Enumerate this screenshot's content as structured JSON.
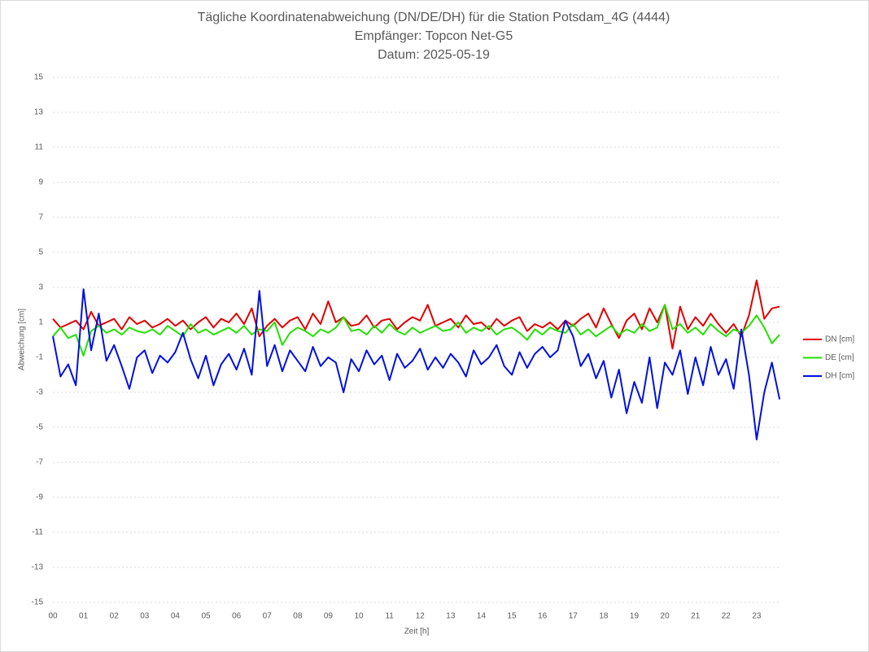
{
  "chart_data": {
    "type": "line",
    "title": [
      "Tägliche Koordinatenabweichung (DN/DE/DH) für die Station Potsdam_4G (4444)",
      "Empfänger: Topcon Net-G5",
      "Datum: 2025-05-19"
    ],
    "xlabel": "Zeit [h]",
    "ylabel": "Abweichung [cm]",
    "grid": true,
    "legend": "right",
    "xlim": [
      0,
      23.8
    ],
    "ylim": [
      -15,
      15
    ],
    "yticks": [
      15,
      13,
      11,
      9,
      7,
      5,
      3,
      1,
      -1,
      -3,
      -5,
      -7,
      -9,
      -11,
      -13,
      -15
    ],
    "xticks": [
      {
        "value": 0,
        "label": "00"
      },
      {
        "value": 1,
        "label": "01"
      },
      {
        "value": 2,
        "label": "02"
      },
      {
        "value": 3,
        "label": "03"
      },
      {
        "value": 4,
        "label": "04"
      },
      {
        "value": 5,
        "label": "05"
      },
      {
        "value": 6,
        "label": "06"
      },
      {
        "value": 7,
        "label": "07"
      },
      {
        "value": 8,
        "label": "08"
      },
      {
        "value": 9,
        "label": "09"
      },
      {
        "value": 10,
        "label": "10"
      },
      {
        "value": 11,
        "label": "11"
      },
      {
        "value": 12,
        "label": "12"
      },
      {
        "value": 13,
        "label": "13"
      },
      {
        "value": 14,
        "label": "14"
      },
      {
        "value": 15,
        "label": "15"
      },
      {
        "value": 16,
        "label": "16"
      },
      {
        "value": 17,
        "label": "17"
      },
      {
        "value": 18,
        "label": "18"
      },
      {
        "value": 19,
        "label": "19"
      },
      {
        "value": 20,
        "label": "20"
      },
      {
        "value": 21,
        "label": "21"
      },
      {
        "value": 22,
        "label": "22"
      },
      {
        "value": 23,
        "label": "23"
      }
    ],
    "x": [
      0,
      0.25,
      0.5,
      0.75,
      1,
      1.25,
      1.5,
      1.75,
      2,
      2.25,
      2.5,
      2.75,
      3,
      3.25,
      3.5,
      3.75,
      4,
      4.25,
      4.5,
      4.75,
      5,
      5.25,
      5.5,
      5.75,
      6,
      6.25,
      6.5,
      6.75,
      7,
      7.25,
      7.5,
      7.75,
      8,
      8.25,
      8.5,
      8.75,
      9,
      9.25,
      9.5,
      9.75,
      10,
      10.25,
      10.5,
      10.75,
      11,
      11.25,
      11.5,
      11.75,
      12,
      12.25,
      12.5,
      12.75,
      13,
      13.25,
      13.5,
      13.75,
      14,
      14.25,
      14.5,
      14.75,
      15,
      15.25,
      15.5,
      15.75,
      16,
      16.25,
      16.5,
      16.75,
      17,
      17.25,
      17.5,
      17.75,
      18,
      18.25,
      18.5,
      18.75,
      19,
      19.25,
      19.5,
      19.75,
      20,
      20.25,
      20.5,
      20.75,
      21,
      21.25,
      21.5,
      21.75,
      22,
      22.25,
      22.5,
      22.75,
      23,
      23.25,
      23.5,
      23.75
    ],
    "series": [
      {
        "name": "DN [cm]",
        "color": "#e00000",
        "values": [
          1.2,
          0.7,
          0.9,
          1.1,
          0.6,
          1.6,
          0.8,
          1.0,
          1.2,
          0.6,
          1.3,
          0.9,
          1.1,
          0.7,
          0.9,
          1.2,
          0.8,
          1.1,
          0.6,
          1.0,
          1.3,
          0.7,
          1.2,
          1.0,
          1.5,
          0.9,
          1.8,
          0.2,
          0.8,
          1.2,
          0.7,
          1.1,
          1.3,
          0.6,
          1.5,
          0.9,
          2.2,
          1.0,
          1.3,
          0.8,
          0.9,
          1.4,
          0.7,
          1.1,
          1.2,
          0.6,
          1.0,
          1.3,
          1.1,
          2.0,
          0.8,
          1.0,
          1.2,
          0.7,
          1.4,
          0.9,
          1.0,
          0.6,
          1.2,
          0.8,
          1.1,
          1.3,
          0.5,
          0.9,
          0.7,
          1.0,
          0.6,
          1.1,
          0.8,
          1.2,
          1.5,
          0.7,
          1.8,
          0.9,
          0.1,
          1.1,
          1.5,
          0.6,
          1.8,
          1.0,
          2.0,
          -0.5,
          1.9,
          0.6,
          1.3,
          0.8,
          1.5,
          0.9,
          0.4,
          0.9,
          0.2,
          1.4,
          3.4,
          1.2,
          1.8,
          1.9
        ]
      },
      {
        "name": "DE [cm]",
        "color": "#22e000",
        "values": [
          0.2,
          0.7,
          0.1,
          0.3,
          -0.9,
          0.5,
          0.8,
          0.4,
          0.6,
          0.3,
          0.7,
          0.5,
          0.4,
          0.6,
          0.3,
          0.8,
          0.5,
          0.2,
          0.9,
          0.4,
          0.6,
          0.3,
          0.5,
          0.7,
          0.4,
          0.8,
          0.3,
          0.6,
          0.5,
          1.0,
          -0.3,
          0.4,
          0.7,
          0.5,
          0.2,
          0.6,
          0.4,
          0.7,
          1.3,
          0.5,
          0.6,
          0.3,
          0.8,
          0.4,
          0.9,
          0.5,
          0.3,
          0.7,
          0.4,
          0.6,
          0.8,
          0.5,
          0.6,
          1.0,
          0.4,
          0.7,
          0.5,
          0.8,
          0.3,
          0.6,
          0.7,
          0.4,
          0.0,
          0.6,
          0.3,
          0.7,
          0.5,
          0.4,
          0.9,
          0.3,
          0.6,
          0.2,
          0.5,
          0.8,
          0.3,
          0.6,
          0.4,
          0.9,
          0.5,
          0.7,
          2.0,
          0.6,
          0.9,
          0.4,
          0.7,
          0.3,
          0.9,
          0.5,
          0.2,
          0.6,
          0.4,
          0.8,
          1.4,
          0.7,
          -0.2,
          0.3
        ]
      },
      {
        "name": "DH [cm]",
        "color": "#0010e0",
        "values": [
          0.2,
          -2.1,
          -1.4,
          -2.6,
          2.9,
          -0.6,
          1.5,
          -1.2,
          -0.3,
          -1.5,
          -2.8,
          -1.0,
          -0.6,
          -1.9,
          -0.9,
          -1.3,
          -0.7,
          0.4,
          -1.1,
          -2.2,
          -0.9,
          -2.6,
          -1.4,
          -0.8,
          -1.7,
          -0.5,
          -2.0,
          2.8,
          -1.5,
          -0.3,
          -1.8,
          -0.6,
          -1.2,
          -1.8,
          -0.4,
          -1.5,
          -1.0,
          -1.3,
          -3.0,
          -1.1,
          -1.8,
          -0.6,
          -1.4,
          -0.9,
          -2.3,
          -0.8,
          -1.6,
          -1.2,
          -0.5,
          -1.7,
          -1.0,
          -1.6,
          -0.8,
          -1.3,
          -2.1,
          -0.6,
          -1.4,
          -1.0,
          -0.3,
          -1.5,
          -2.0,
          -0.7,
          -1.6,
          -0.8,
          -0.4,
          -1.0,
          -0.6,
          1.1,
          0.2,
          -1.5,
          -0.8,
          -2.2,
          -1.2,
          -3.3,
          -1.7,
          -4.2,
          -2.4,
          -3.6,
          -1.0,
          -3.9,
          -1.3,
          -2.0,
          -0.6,
          -3.1,
          -1.0,
          -2.6,
          -0.4,
          -2.0,
          -1.1,
          -2.8,
          0.6,
          -2.0,
          -5.7,
          -3.0,
          -1.3,
          -3.4
        ]
      }
    ]
  }
}
